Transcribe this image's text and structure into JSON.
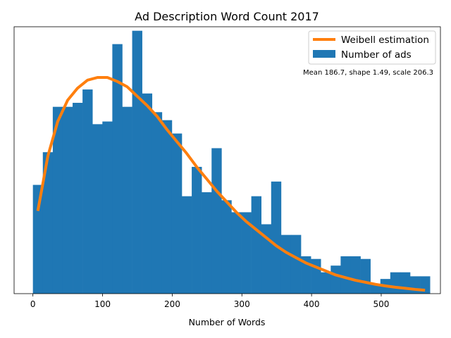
{
  "chart_data": {
    "type": "bar",
    "title": "Ad Description Word Count 2017",
    "xlabel": "Number of Words",
    "ylabel": "",
    "xlim": [
      -27,
      585
    ],
    "ylim": [
      0,
      20
    ],
    "x_ticks": [
      0,
      100,
      200,
      300,
      400,
      500
    ],
    "y_ticks_visible": false,
    "bin_width": 14.25,
    "bin_starts": [
      0,
      14.25,
      28.5,
      42.75,
      57,
      71.25,
      85.5,
      99.75,
      114,
      128.25,
      142.5,
      156.75,
      171,
      185.25,
      199.5,
      213.75,
      228,
      242.25,
      256.5,
      270.75,
      285,
      299.25,
      313.5,
      327.75,
      342,
      356.25,
      370.5,
      384.75,
      399,
      413.25,
      427.5,
      441.75,
      456,
      470.25,
      484.5,
      498.75,
      513,
      527.25,
      541.5,
      555.75
    ],
    "series": [
      {
        "name": "Number of ads",
        "color": "#1f77b4",
        "values": [
          8.15,
          10.6,
          14.0,
          14.0,
          14.3,
          15.3,
          12.7,
          12.9,
          18.7,
          14.0,
          19.7,
          15.0,
          13.6,
          13.0,
          12.0,
          7.3,
          9.5,
          7.6,
          10.9,
          7.0,
          6.1,
          6.1,
          7.3,
          5.2,
          8.4,
          4.4,
          4.4,
          2.8,
          2.6,
          1.6,
          2.1,
          2.8,
          2.8,
          2.6,
          0.7,
          1.1,
          1.6,
          1.6,
          1.3,
          1.3
        ]
      },
      {
        "name": "Weibell estimation",
        "color": "#ff7f0e",
        "type": "line",
        "x": [
          7.1,
          21.4,
          35.6,
          49.9,
          64.1,
          78.4,
          92.6,
          106.9,
          121.1,
          135.4,
          149.6,
          163.9,
          178.1,
          192.4,
          206.6,
          220.9,
          235.1,
          249.4,
          263.6,
          277.9,
          292.1,
          306.4,
          320.6,
          334.9,
          349.1,
          363.4,
          377.6,
          391.9,
          406.1,
          420.4,
          434.6,
          448.9,
          463.1,
          477.4,
          491.6,
          505.9,
          520.1,
          534.4,
          548.6,
          562.9
        ],
        "values": [
          6.2,
          10.3,
          12.9,
          14.5,
          15.4,
          16.0,
          16.2,
          16.2,
          15.9,
          15.5,
          14.8,
          14.1,
          13.3,
          12.3,
          11.4,
          10.5,
          9.5,
          8.6,
          7.7,
          6.9,
          6.1,
          5.4,
          4.8,
          4.2,
          3.6,
          3.1,
          2.7,
          2.3,
          2.0,
          1.7,
          1.4,
          1.2,
          1.0,
          0.85,
          0.7,
          0.58,
          0.48,
          0.4,
          0.32,
          0.26
        ]
      }
    ],
    "legend": {
      "position": "top-right",
      "entries": [
        "Weibell estimation",
        "Number of ads"
      ]
    },
    "annotation": "Mean 186.7, shape 1.49, scale 206.3"
  }
}
